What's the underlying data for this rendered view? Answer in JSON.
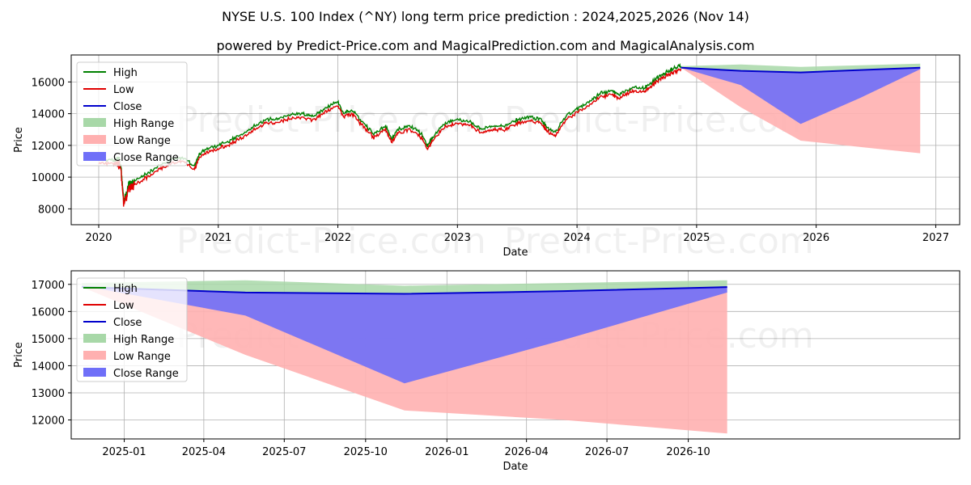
{
  "title_line1": "NYSE U.S. 100 Index (^NY) long term price prediction : 2024,2025,2026 (Nov 14)",
  "title_line2": "powered by Predict-Price.com and MagicalPrediction.com and MagicalAnalysis.com",
  "watermark": "Predict-Price.com",
  "colors": {
    "high": "#008000",
    "low": "#e00000",
    "close": "#0000cc",
    "high_range": "#a8d8a8",
    "low_range": "#ffb0b0",
    "close_range": "#6f6ff8"
  },
  "chart_data": [
    {
      "type": "line",
      "name": "top-chart",
      "xlabel": "Date",
      "ylabel": "Price",
      "xlim": [
        2019.77,
        2027.2
      ],
      "ylim": [
        7000,
        17700
      ],
      "x_ticks": [
        2020,
        2021,
        2022,
        2023,
        2024,
        2025,
        2026,
        2027
      ],
      "x_tick_labels": [
        "2020",
        "2021",
        "2022",
        "2023",
        "2024",
        "2025",
        "2026",
        "2027"
      ],
      "y_ticks": [
        8000,
        10000,
        12000,
        14000,
        16000
      ],
      "y_tick_labels": [
        "8000",
        "10000",
        "12000",
        "14000",
        "16000"
      ],
      "grid": true,
      "legend": [
        "High",
        "Low",
        "Close",
        "High Range",
        "Low Range",
        "Close Range"
      ],
      "legend_position": "upper-left",
      "history": {
        "x": [
          2020.0,
          2020.12,
          2020.18,
          2020.21,
          2020.25,
          2020.3,
          2020.4,
          2020.5,
          2020.6,
          2020.7,
          2020.8,
          2020.84,
          2020.9,
          2021.0,
          2021.1,
          2021.2,
          2021.3,
          2021.4,
          2021.5,
          2021.6,
          2021.7,
          2021.8,
          2021.9,
          2022.0,
          2022.05,
          2022.12,
          2022.2,
          2022.3,
          2022.4,
          2022.45,
          2022.5,
          2022.6,
          2022.7,
          2022.75,
          2022.8,
          2022.9,
          2023.0,
          2023.1,
          2023.2,
          2023.3,
          2023.4,
          2023.5,
          2023.6,
          2023.7,
          2023.75,
          2023.82,
          2023.9,
          2024.0,
          2024.1,
          2024.2,
          2024.3,
          2024.35,
          2024.45,
          2024.55,
          2024.6,
          2024.7,
          2024.75,
          2024.8,
          2024.87
        ],
        "close": [
          11000,
          11000,
          10900,
          8300,
          9300,
          9600,
          10100,
          10600,
          11000,
          11100,
          10600,
          11300,
          11700,
          11900,
          12200,
          12600,
          13100,
          13500,
          13600,
          13800,
          13900,
          13700,
          14300,
          14600,
          13900,
          14100,
          13400,
          12600,
          13100,
          12300,
          12900,
          13100,
          12600,
          11900,
          12500,
          13300,
          13500,
          13400,
          12900,
          13100,
          13100,
          13500,
          13700,
          13500,
          13000,
          12700,
          13700,
          14200,
          14600,
          15200,
          15300,
          15100,
          15500,
          15500,
          15700,
          16300,
          16500,
          16700,
          16900
        ]
      },
      "prediction": {
        "x": [
          2024.87,
          2025.37,
          2025.87,
          2026.37,
          2026.87
        ],
        "high": [
          17000,
          17100,
          16950,
          17050,
          17150
        ],
        "low": [
          16900,
          14400,
          12300,
          11900,
          11500
        ],
        "close": [
          16900,
          16700,
          16600,
          16750,
          16900
        ],
        "close_range_low": [
          16900,
          15800,
          13350,
          15000,
          16800
        ]
      }
    },
    {
      "type": "line",
      "name": "bottom-chart",
      "xlabel": "Date",
      "ylabel": "Price",
      "xlim": [
        -60,
        945
      ],
      "ylim": [
        11300,
        17500
      ],
      "x_ticks": [
        0,
        90,
        181,
        273,
        365,
        455,
        546,
        638
      ],
      "x_tick_labels": [
        "2025-01",
        "2025-04",
        "2025-07",
        "2025-10",
        "2026-01",
        "2026-04",
        "2026-07",
        "2026-10"
      ],
      "y_ticks": [
        12000,
        13000,
        14000,
        15000,
        16000,
        17000
      ],
      "y_tick_labels": [
        "12000",
        "13000",
        "14000",
        "15000",
        "16000",
        "17000"
      ],
      "grid": true,
      "legend": [
        "High",
        "Low",
        "Close",
        "High Range",
        "Low Range",
        "Close Range"
      ],
      "legend_position": "upper-left",
      "prediction": {
        "x": [
          -48,
          137,
          317,
          497,
          682
        ],
        "high": [
          17050,
          17150,
          16950,
          17050,
          17150
        ],
        "low": [
          16900,
          14400,
          12350,
          12000,
          11500
        ],
        "close": [
          16900,
          16700,
          16650,
          16750,
          16900
        ],
        "close_range_low": [
          16950,
          15850,
          13350,
          14950,
          16700
        ]
      }
    }
  ]
}
